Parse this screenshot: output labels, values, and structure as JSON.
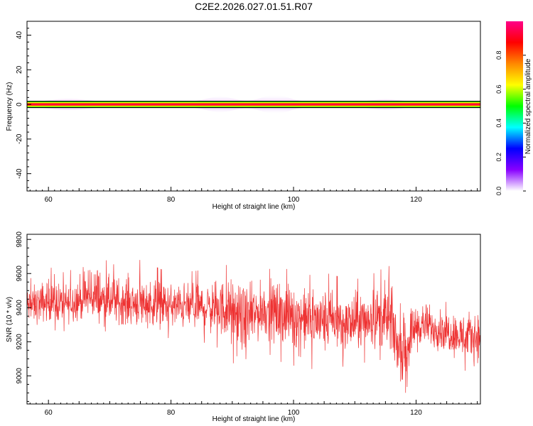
{
  "title": "C2E2.2026.027.01.51.R07",
  "colors": {
    "snr_line": "#ee3333",
    "frame": "#000000",
    "background": "#ffffff"
  },
  "chart_data": [
    {
      "type": "heatmap",
      "xlabel": "Height of straight line (km)",
      "ylabel": "Frequency (Hz)",
      "xlim": [
        56.5,
        130.5
      ],
      "ylim": [
        -50,
        48
      ],
      "x_ticks": [
        60,
        80,
        100,
        120
      ],
      "y_ticks": [
        -40,
        -20,
        0,
        20,
        40
      ],
      "grid": false,
      "content": "narrow band of high normalized spectral amplitude centered at 0 Hz across all heights, faint widening near 88-99 km",
      "band": {
        "center_hz": 0,
        "peak_value": 1.0
      },
      "colorbar": {
        "label": "Normalized spectral amplitude",
        "range": [
          0,
          1
        ],
        "ticks": [
          "0.0",
          "0.2",
          "0.4",
          "0.6",
          "0.8"
        ],
        "colormap": [
          "#ffffff",
          "#8800ff",
          "#0000ff",
          "#00ffff",
          "#00ff00",
          "#ffff00",
          "#ff8800",
          "#ff0000",
          "#ff0088"
        ]
      }
    },
    {
      "type": "line",
      "xlabel": "Height of straight line (km)",
      "ylabel": "SNR (10 * v/v)",
      "xlim": [
        56.5,
        130.5
      ],
      "ylim": [
        8835,
        9830
      ],
      "x_ticks": [
        60,
        80,
        100,
        120
      ],
      "y_ticks": [
        9000,
        9200,
        9400,
        9600,
        9800
      ],
      "grid": false,
      "series": [
        {
          "color": "#ee3333",
          "envelope_km": [
            57,
            60,
            63,
            66,
            66.6,
            70,
            75,
            80,
            85,
            88,
            90,
            92,
            95,
            98,
            100,
            103,
            106,
            109,
            112,
            114,
            116,
            117,
            118,
            120,
            124,
            128,
            130
          ],
          "mean": [
            9410,
            9430,
            9420,
            9450,
            9460,
            9430,
            9420,
            9410,
            9400,
            9400,
            9370,
            9330,
            9390,
            9370,
            9350,
            9330,
            9320,
            9300,
            9330,
            9340,
            9310,
            9180,
            9150,
            9300,
            9270,
            9220,
            9230
          ],
          "min": [
            9240,
            9270,
            9260,
            9280,
            9300,
            9250,
            9240,
            9220,
            9200,
            9160,
            9080,
            9010,
            9150,
            9080,
            9060,
            9040,
            9040,
            9060,
            9080,
            9100,
            9000,
            8900,
            8860,
            9140,
            9100,
            9030,
            9030
          ],
          "max": [
            9570,
            9640,
            9600,
            9700,
            9820,
            9650,
            9680,
            9600,
            9620,
            9640,
            9660,
            9610,
            9620,
            9640,
            9610,
            9590,
            9600,
            9560,
            9580,
            9620,
            9650,
            9400,
            9460,
            9500,
            9470,
            9440,
            9450
          ]
        }
      ]
    }
  ]
}
